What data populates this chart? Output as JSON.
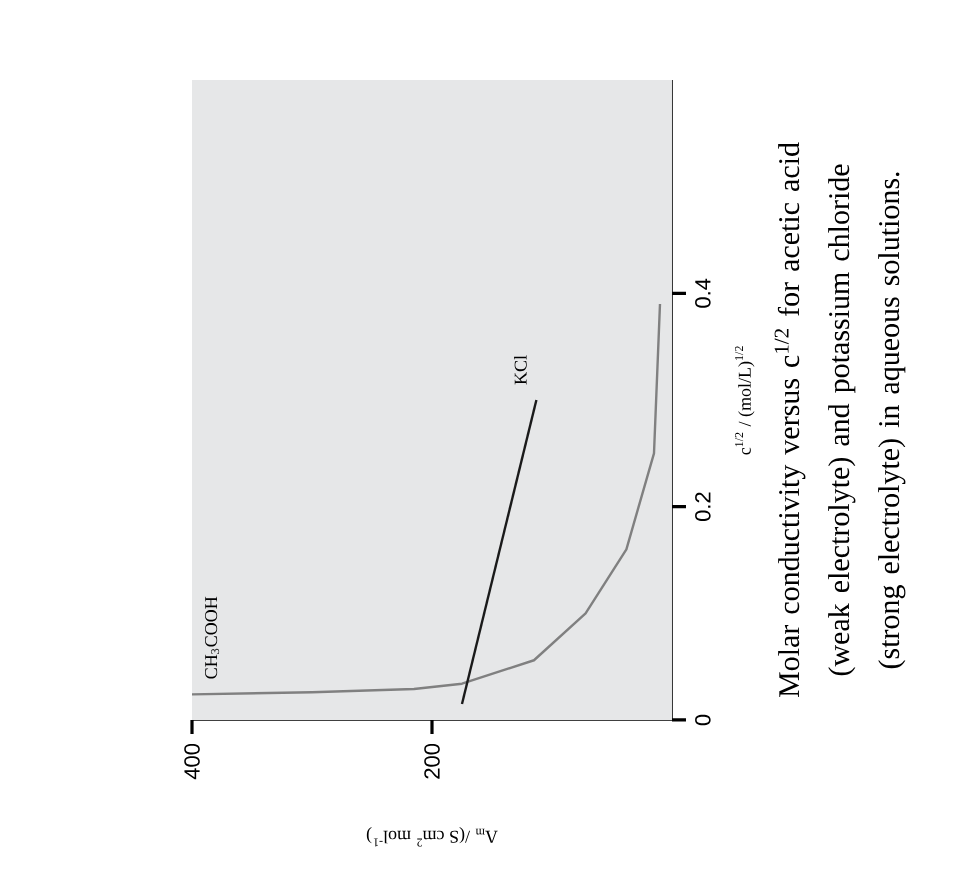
{
  "chart_data": {
    "type": "line",
    "xlabel": "Λ$_{m}$ /(S cm$^{2}$ mol$^{-1}$)",
    "ylabel": "c$^{1/2}$ / (mol/L)$^{1/2}$",
    "annotations": [
      "Molar conductivity versus c$^{1/2}$ for acetic acid (weak electrolyte) and potassium chloride (strong electrolyte) in aqueous solutions."
    ],
    "xlim": [
      400,
      0
    ],
    "ylim": [
      0,
      0.6
    ],
    "xticks": [
      400,
      200
    ],
    "yticks": [
      0,
      0.2,
      0.4
    ],
    "series": [
      {
        "name": "CH$_{3}$COOH",
        "color": "#808080",
        "x": [
          400,
          300,
          215,
          175,
          115,
          72,
          38,
          15,
          10
        ],
        "values": [
          0.024,
          0.026,
          0.029,
          0.034,
          0.056,
          0.1,
          0.16,
          0.25,
          0.39
        ]
      },
      {
        "name": "KCl",
        "color": "#1a1a1a",
        "x": [
          175,
          113
        ],
        "values": [
          0.015,
          0.3
        ]
      }
    ]
  }
}
